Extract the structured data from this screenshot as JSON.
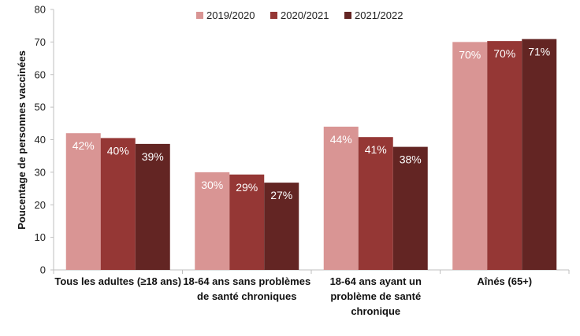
{
  "chart_data": {
    "type": "bar",
    "categories": [
      [
        "Tous les adultes  (≥18 ans)"
      ],
      [
        "18-64 ans sans problèmes",
        "de santé chroniques"
      ],
      [
        "18-64 ans ayant un",
        "problème de santé",
        "chronique"
      ],
      [
        "Aînés (65+)"
      ]
    ],
    "series": [
      {
        "name": "2019/2020",
        "color": "#d99594",
        "values": [
          42,
          30,
          44,
          70
        ],
        "labels": [
          "42%",
          "30%",
          "44%",
          "70%"
        ]
      },
      {
        "name": "2020/2021",
        "color": "#953735",
        "values": [
          40.5,
          29.3,
          40.8,
          70.3
        ],
        "labels": [
          "40%",
          "29%",
          "41%",
          "70%"
        ]
      },
      {
        "name": "2021/2022",
        "color": "#632523",
        "values": [
          38.7,
          26.8,
          37.8,
          70.9
        ],
        "labels": [
          "39%",
          "27%",
          "38%",
          "71%"
        ]
      }
    ],
    "ylabel": "Poucentage de personnes vaccinées",
    "ylim": [
      0,
      80
    ],
    "yticks": [
      0,
      10,
      20,
      30,
      40,
      50,
      60,
      70,
      80
    ],
    "grid": false,
    "legend": "top-center"
  }
}
